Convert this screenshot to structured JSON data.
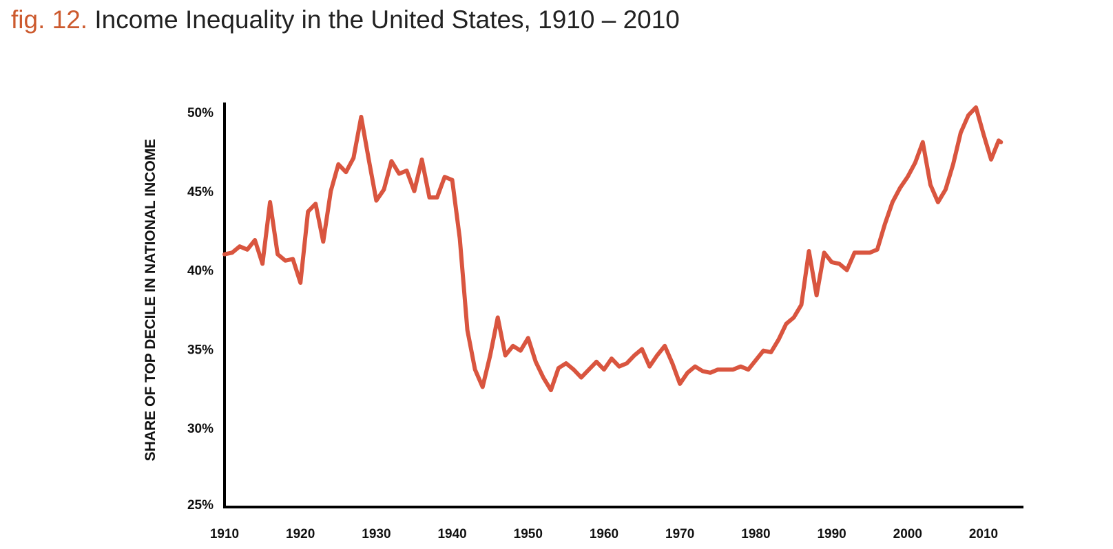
{
  "figure": {
    "number": "fig. 12.",
    "title": "Income Inequality in the United States, 1910 – 2010"
  },
  "colors": {
    "figure_number": "#cc5a2e",
    "line": "#d9553f",
    "axis": "#000000",
    "text": "#222222"
  },
  "chart_data": {
    "type": "line",
    "title": "Income Inequality in the United States, 1910 – 2010",
    "xlabel": "",
    "ylabel": "SHARE OF TOP DECILE IN NATIONAL INCOME",
    "xlim": [
      1910,
      2010
    ],
    "ylim": [
      25,
      50
    ],
    "x_ticks": [
      1910,
      1920,
      1930,
      1940,
      1950,
      1960,
      1970,
      1980,
      1990,
      2000,
      2010
    ],
    "x_tick_labels": [
      "1910",
      "1920",
      "1930",
      "1940",
      "1950",
      "1960",
      "1970",
      "1980",
      "1990",
      "2000",
      "2010"
    ],
    "y_ticks": [
      25,
      30,
      35,
      40,
      45,
      50
    ],
    "y_tick_labels": [
      "25%",
      "30%",
      "35%",
      "40%",
      "45%",
      "50%"
    ],
    "grid": false,
    "legend": "none",
    "series": [
      {
        "x": [
          1910,
          1911,
          1912,
          1913,
          1914,
          1915,
          1916,
          1917,
          1918,
          1919,
          1920,
          1921,
          1922,
          1923,
          1924,
          1925,
          1926,
          1927,
          1928,
          1929,
          1930,
          1931,
          1932,
          1933,
          1934,
          1935,
          1936,
          1937,
          1938,
          1939,
          1940,
          1941,
          1942,
          1943,
          1944,
          1945,
          1946,
          1947,
          1948,
          1949,
          1950,
          1951,
          1952,
          1953,
          1954,
          1955,
          1956,
          1957,
          1958,
          1959,
          1960,
          1961,
          1962,
          1963,
          1964,
          1965,
          1966,
          1967,
          1968,
          1969,
          1970,
          1971,
          1972,
          1973,
          1974,
          1975,
          1976,
          1977,
          1978,
          1979,
          1980,
          1981,
          1982,
          1983,
          1984,
          1985,
          1986,
          1987,
          1988,
          1989,
          1990,
          1991,
          1992,
          1993,
          1994,
          1995,
          1996,
          1997,
          1998,
          1999,
          2000,
          2001,
          2002,
          2003,
          2004,
          2005,
          2006,
          2007,
          2008,
          2009,
          2010,
          2011
        ],
        "values": [
          41.0,
          41.1,
          41.5,
          41.3,
          41.9,
          40.4,
          44.3,
          41.0,
          40.6,
          40.7,
          39.2,
          43.7,
          44.2,
          41.8,
          45.0,
          46.7,
          46.2,
          47.1,
          49.7,
          47.0,
          44.4,
          45.1,
          46.9,
          46.1,
          46.3,
          45.0,
          47.0,
          44.6,
          44.6,
          45.9,
          45.7,
          42.0,
          36.2,
          33.7,
          32.6,
          34.6,
          37.0,
          34.6,
          35.2,
          34.9,
          35.7,
          34.2,
          33.2,
          32.4,
          33.8,
          34.1,
          33.7,
          33.2,
          33.7,
          34.2,
          33.7,
          34.4,
          33.9,
          34.1,
          34.6,
          35.0,
          33.9,
          34.6,
          35.2,
          34.1,
          32.8,
          33.5,
          33.9,
          33.6,
          33.5,
          33.7,
          33.7,
          33.7,
          33.9,
          33.7,
          34.3,
          34.9,
          34.8,
          35.6,
          36.6,
          37.0,
          37.8,
          41.2,
          38.4,
          41.1,
          40.5,
          40.4,
          40.0,
          41.1,
          41.1,
          41.1,
          41.3,
          42.9,
          44.3,
          45.2,
          45.9,
          46.8,
          48.1,
          45.4,
          44.3,
          45.1,
          46.7,
          48.7,
          49.8,
          50.3,
          48.6,
          47.0
        ],
        "trailing": [
          {
            "x": 2012,
            "value": 48.2
          },
          {
            "x": 2012.3,
            "value": 48.1
          }
        ]
      }
    ]
  }
}
